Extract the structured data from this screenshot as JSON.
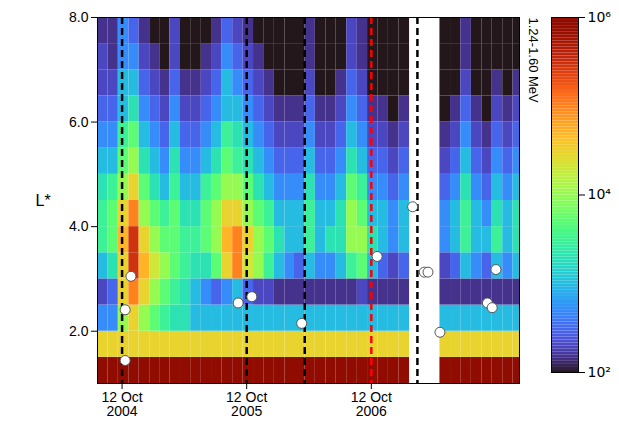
{
  "chart_data": {
    "type": "heatmap",
    "ylabel": "L*",
    "xlim": [
      "2004-08-01",
      "2007-12-20"
    ],
    "ylim": [
      1,
      8
    ],
    "xticks": [
      {
        "value": "2004-10-12",
        "label": "12 Oct\n2004"
      },
      {
        "value": "2005-10-12",
        "label": "12 Oct\n2005"
      },
      {
        "value": "2006-10-12",
        "label": "12 Oct\n2006"
      }
    ],
    "yticks": [
      2,
      4,
      6,
      8
    ],
    "x_edges": [
      "2004-08-01",
      "2004-09-01",
      "2004-10-01",
      "2004-11-01",
      "2004-12-01",
      "2005-01-01",
      "2005-02-01",
      "2005-03-01",
      "2005-04-01",
      "2005-05-01",
      "2005-06-01",
      "2005-07-01",
      "2005-08-01",
      "2005-09-01",
      "2005-10-01",
      "2005-11-01",
      "2005-12-01",
      "2006-01-01",
      "2006-02-01",
      "2006-03-01",
      "2006-04-01",
      "2006-05-01",
      "2006-06-01",
      "2006-07-01",
      "2006-08-01",
      "2006-09-01",
      "2006-10-01",
      "2006-11-01",
      "2006-12-01",
      "2007-01-01",
      "2007-02-01",
      "2007-03-01",
      "2007-04-01",
      "2007-05-01",
      "2007-06-01",
      "2007-07-01",
      "2007-08-01",
      "2007-09-01",
      "2007-10-01",
      "2007-11-01",
      "2007-12-01",
      "2008-01-01"
    ],
    "y_edges": [
      1,
      1.5,
      2,
      2.5,
      3,
      3.5,
      4,
      4.5,
      5,
      5.5,
      6,
      6.5,
      7,
      7.5,
      8
    ],
    "cells": [
      [
        1000000.0,
        1000000.0,
        1000000.0,
        1000000.0,
        1000000.0,
        1000000.0,
        1000000.0,
        1000000.0,
        1000000.0,
        1000000.0,
        1000000.0,
        1000000.0,
        1000000.0,
        1000000.0,
        1000000.0,
        1000000.0,
        1000000.0,
        1000000.0,
        1000000.0,
        1000000.0,
        1000000.0,
        1000000.0,
        1000000.0,
        1000000.0,
        1000000.0,
        1000000.0,
        1000000.0,
        1000000.0,
        1000000.0,
        1000000.0,
        null,
        null,
        null,
        1000000.0,
        1000000.0,
        1000000.0,
        1000000.0,
        1000000.0,
        1000000.0,
        1000000.0,
        1000000.0
      ],
      [
        30000.0,
        30000.0,
        30000.0,
        30000.0,
        30000.0,
        30000.0,
        30000.0,
        30000.0,
        30000.0,
        30000.0,
        30000.0,
        30000.0,
        30000.0,
        30000.0,
        30000.0,
        30000.0,
        30000.0,
        30000.0,
        30000.0,
        30000.0,
        30000.0,
        30000.0,
        30000.0,
        30000.0,
        30000.0,
        30000.0,
        30000.0,
        30000.0,
        30000.0,
        30000.0,
        null,
        null,
        null,
        30000.0,
        30000.0,
        30000.0,
        30000.0,
        30000.0,
        30000.0,
        30000.0,
        30000.0
      ],
      [
        500,
        500,
        10000.0,
        30000.0,
        10000.0,
        5000.0,
        3000.0,
        2000.0,
        2000.0,
        1000.0,
        1000.0,
        1000.0,
        1000.0,
        1000.0,
        1000.0,
        1000.0,
        1000.0,
        1000.0,
        1000.0,
        1000.0,
        1000.0,
        1000.0,
        1000.0,
        1000.0,
        1000.0,
        1000.0,
        1000.0,
        1000.0,
        1000.0,
        1000.0,
        null,
        null,
        null,
        1000.0,
        1000.0,
        1000.0,
        1000.0,
        1000.0,
        1000.0,
        1000.0,
        1000.0
      ],
      [
        200,
        300,
        30000.0,
        100000.0,
        30000.0,
        10000.0,
        5000.0,
        3000.0,
        2000.0,
        1000.0,
        500,
        300,
        500,
        1000.0,
        300,
        200,
        200,
        150,
        150,
        150,
        150,
        150,
        150,
        150,
        150,
        200,
        150,
        150,
        150,
        150,
        null,
        null,
        null,
        150,
        150,
        150,
        150,
        150,
        150,
        150,
        150
      ],
      [
        1000.0,
        2000.0,
        30000.0,
        300000.0,
        50000.0,
        20000.0,
        10000.0,
        5000.0,
        3000.0,
        2000.0,
        2000.0,
        5000.0,
        30000.0,
        100000.0,
        20000.0,
        10000.0,
        3000.0,
        1000.0,
        500,
        300,
        1000.0,
        500,
        500,
        1000.0,
        3000.0,
        5000.0,
        1000.0,
        300,
        200,
        300,
        null,
        null,
        null,
        200,
        300,
        1000.0,
        500,
        300,
        1000.0,
        500,
        1000.0
      ],
      [
        3000.0,
        5000.0,
        50000.0,
        300000.0,
        30000.0,
        10000.0,
        5000.0,
        5000.0,
        3000.0,
        3000.0,
        5000.0,
        10000.0,
        50000.0,
        100000.0,
        30000.0,
        10000.0,
        5000.0,
        2000.0,
        1000.0,
        1000.0,
        3000.0,
        1000.0,
        2000.0,
        2000.0,
        10000.0,
        10000.0,
        2000.0,
        1000.0,
        500,
        1000.0,
        null,
        null,
        null,
        500,
        1000.0,
        3000.0,
        1000.0,
        1000.0,
        3000.0,
        1000.0,
        2000.0
      ],
      [
        3000.0,
        5000.0,
        30000.0,
        100000.0,
        10000.0,
        5000.0,
        3000.0,
        5000.0,
        2000.0,
        2000.0,
        5000.0,
        10000.0,
        30000.0,
        30000.0,
        10000.0,
        5000.0,
        3000.0,
        1000.0,
        1000.0,
        1000.0,
        3000.0,
        1000.0,
        1000.0,
        2000.0,
        10000.0,
        5000.0,
        1000.0,
        1000.0,
        500,
        1000.0,
        null,
        null,
        null,
        500,
        1000.0,
        3000.0,
        1000.0,
        500,
        2000.0,
        1000.0,
        2000.0
      ],
      [
        2000.0,
        3000.0,
        10000.0,
        30000.0,
        5000.0,
        2000.0,
        1000.0,
        3000.0,
        1000.0,
        1000.0,
        3000.0,
        5000.0,
        10000.0,
        10000.0,
        5000.0,
        2000.0,
        1000.0,
        500,
        500,
        500,
        2000.0,
        500,
        500,
        1000.0,
        5000.0,
        3000.0,
        500,
        500,
        300,
        500,
        null,
        null,
        null,
        300,
        500,
        2000.0,
        500,
        300,
        1000.0,
        500,
        1000.0
      ],
      [
        1000.0,
        1000.0,
        5000.0,
        10000.0,
        2000.0,
        1000.0,
        500,
        2000.0,
        500,
        500,
        1000.0,
        2000.0,
        5000.0,
        3000.0,
        2000.0,
        1000.0,
        500,
        300,
        300,
        300,
        1000.0,
        300,
        300,
        500,
        2000.0,
        1000.0,
        300,
        300,
        200,
        300,
        null,
        null,
        null,
        200,
        300,
        1000.0,
        300,
        200,
        500,
        300,
        500
      ],
      [
        500,
        500,
        3000.0,
        5000.0,
        1000.0,
        500,
        300,
        1000.0,
        300,
        300,
        500,
        1000.0,
        3000.0,
        2000.0,
        1000.0,
        500,
        300,
        200,
        200,
        200,
        500,
        200,
        200,
        300,
        1000.0,
        500,
        200,
        200,
        150,
        200,
        null,
        null,
        null,
        150,
        200,
        500,
        200,
        150,
        300,
        200,
        300
      ],
      [
        300,
        300,
        1000.0,
        2000.0,
        500,
        300,
        200,
        500,
        200,
        200,
        300,
        500,
        1000.0,
        1000.0,
        500,
        300,
        200,
        150,
        150,
        150,
        300,
        150,
        150,
        200,
        500,
        300,
        150,
        150,
        100,
        150,
        null,
        null,
        null,
        100,
        150,
        300,
        150,
        100,
        200,
        150,
        200
      ],
      [
        200,
        200,
        1000.0,
        1000.0,
        300,
        200,
        150,
        300,
        150,
        150,
        200,
        300,
        1000.0,
        500,
        300,
        200,
        150,
        100,
        100,
        100,
        200,
        100,
        100,
        150,
        300,
        200,
        100,
        100,
        100,
        100,
        null,
        null,
        null,
        100,
        100,
        200,
        100,
        100,
        150,
        100,
        150
      ],
      [
        200,
        150,
        500,
        500,
        200,
        150,
        100,
        200,
        100,
        100,
        150,
        200,
        500,
        300,
        200,
        150,
        100,
        100,
        100,
        100,
        150,
        100,
        100,
        100,
        200,
        150,
        100,
        100,
        100,
        100,
        null,
        null,
        null,
        100,
        100,
        150,
        100,
        100,
        100,
        100,
        100
      ],
      [
        150,
        150,
        500,
        300,
        150,
        100,
        100,
        200,
        100,
        100,
        100,
        150,
        300,
        200,
        150,
        100,
        100,
        100,
        100,
        100,
        150,
        100,
        100,
        100,
        200,
        150,
        100,
        100,
        100,
        100,
        null,
        null,
        null,
        100,
        100,
        150,
        100,
        100,
        100,
        100,
        100
      ]
    ],
    "reference_lines": {
      "x": [
        "2004-10-12",
        "2005-10-12",
        "2006-03-31",
        "2006-10-12",
        "2007-02-24"
      ],
      "colors": [
        "black",
        "black",
        "black",
        "red",
        "black"
      ],
      "line_style": "dashed"
    },
    "points": {
      "x": [
        "2004-10-21",
        "2004-10-21",
        "2004-11-07",
        "2005-09-17",
        "2005-10-27",
        "2006-03-22",
        "2006-10-29",
        "2007-02-10",
        "2007-03-16",
        "2007-03-27",
        "2007-05-01",
        "2007-09-17",
        "2007-10-01",
        "2007-10-12"
      ],
      "y": [
        1.44,
        2.41,
        3.05,
        2.54,
        2.66,
        2.15,
        3.43,
        4.38,
        3.13,
        3.13,
        1.98,
        2.54,
        2.45,
        3.18
      ],
      "color": "white",
      "marker": "circle"
    },
    "colorbar": {
      "label": "1.24-1.60 MeV",
      "range": [
        100,
        1000000
      ],
      "log": true,
      "ticks": [
        {
          "value": 100,
          "label": "10²"
        },
        {
          "value": 10000,
          "label": "10⁴"
        },
        {
          "value": 1000000,
          "label": "10⁶"
        }
      ]
    }
  }
}
